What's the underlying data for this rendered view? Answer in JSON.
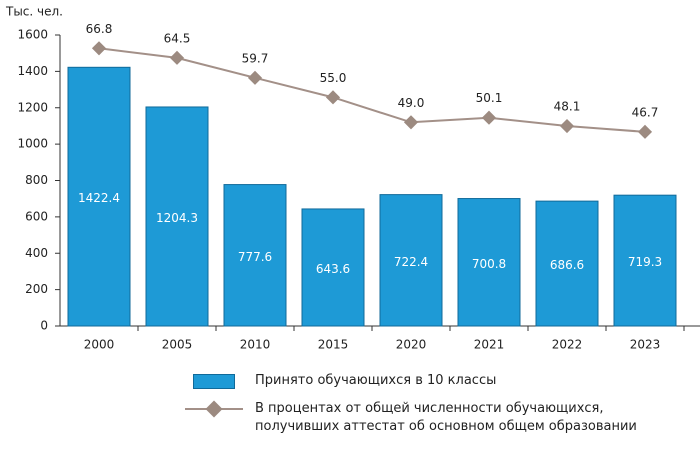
{
  "chart_data": {
    "type": "bar_line",
    "y_label": "Тыс. чел.",
    "categories": [
      "2000",
      "2005",
      "2010",
      "2015",
      "2020",
      "2021",
      "2022",
      "2023"
    ],
    "series": [
      {
        "name": "Принято обучающихся в 10 классы",
        "type": "bar",
        "color": "#1e9ad6",
        "values": [
          1422.4,
          1204.3,
          777.6,
          643.6,
          722.4,
          700.8,
          686.6,
          719.3
        ]
      },
      {
        "name": "В процентах от общей численности обучающихся, получивших аттестат об основном общем образовании",
        "type": "line",
        "axis": "y2",
        "color": "#a39088",
        "values": [
          66.8,
          64.5,
          59.7,
          55.0,
          49.0,
          50.1,
          48.1,
          46.7
        ],
        "value_labels": [
          "66.8",
          "64.5",
          "59.7",
          "55.0",
          "49.0",
          "50.1",
          "48.1",
          "46.7"
        ]
      }
    ],
    "ylim": [
      0,
      1600
    ],
    "yticks": [
      0,
      200,
      400,
      600,
      800,
      1000,
      1200,
      1400,
      1600
    ],
    "y2lim": [
      0,
      70
    ]
  }
}
